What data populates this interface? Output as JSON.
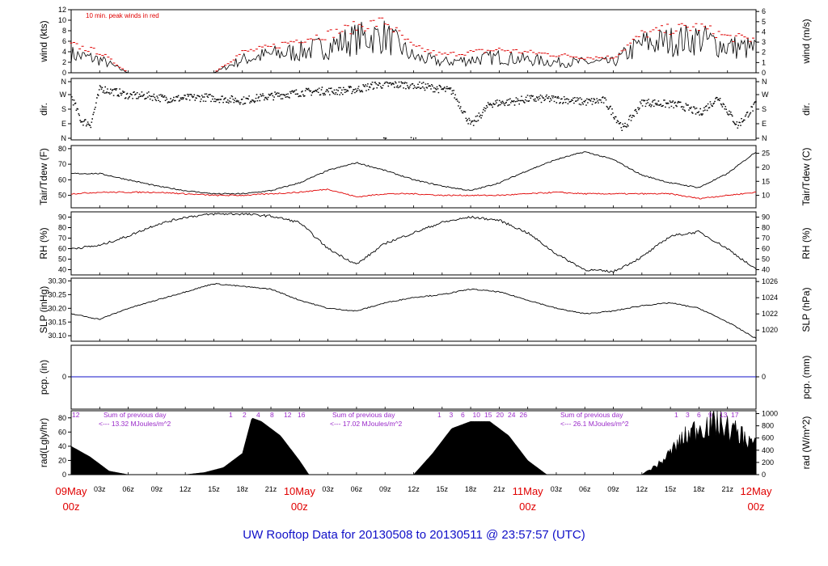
{
  "title": "UW Rooftop Data for 20130508  to  20130511 @ 23:57:57  (UTC)",
  "colors": {
    "red": "#e00000",
    "purple": "#9a2ac9",
    "blue": "#1010c8",
    "black": "#000000"
  },
  "time_axis": {
    "hour_ticks": [
      "03z",
      "06z",
      "09z",
      "12z",
      "15z",
      "18z",
      "21z",
      "03z",
      "06z",
      "09z",
      "12z",
      "15z",
      "18z",
      "21z",
      "03z",
      "06z",
      "09z",
      "12z",
      "15z",
      "18z",
      "21z"
    ],
    "day_labels": [
      {
        "date": "09May",
        "hour": "00z"
      },
      {
        "date": "10May",
        "hour": "00z"
      },
      {
        "date": "11May",
        "hour": "00z"
      },
      {
        "date": "12May",
        "hour": "00z"
      }
    ]
  },
  "chart_data": [
    {
      "type": "line",
      "id": "wind",
      "ylabel": "wind (kts)",
      "ylabel_right": "wind (m/s)",
      "annotation": "10 min. peak winds in red",
      "ylim": [
        0,
        12
      ],
      "yticks": [
        "0",
        "2",
        "4",
        "6",
        "8",
        "10",
        "12"
      ],
      "right_ticks": [
        "0",
        "1",
        "2",
        "3",
        "4",
        "5",
        "6"
      ],
      "x_hours": [
        0,
        3,
        6,
        9,
        12,
        15,
        18,
        21,
        24,
        27,
        30,
        33,
        36,
        39,
        42,
        45,
        48,
        51,
        54,
        57,
        60,
        63,
        66,
        69,
        72
      ],
      "series": [
        {
          "values": [
            3.5,
            2.5,
            0,
            0,
            0,
            0,
            2.5,
            3.5,
            4,
            5,
            6.5,
            7,
            3,
            2,
            2.5,
            3,
            2.5,
            2,
            2,
            2,
            5.5,
            6,
            6.5,
            5,
            4.5
          ]
        },
        {
          "values": [
            5.5,
            4,
            0,
            0,
            0,
            0,
            4,
            5,
            6.5,
            7.5,
            9,
            10,
            5,
            3.5,
            4,
            4.5,
            4,
            3.5,
            3,
            3,
            7.5,
            8.5,
            9,
            7,
            6.5
          ]
        }
      ]
    },
    {
      "type": "scatter",
      "id": "dir",
      "ylabel": "dir.",
      "ylabel_right": "dir.",
      "yticks": [
        "N",
        "E",
        "S",
        "W",
        "N"
      ],
      "right_ticks": [
        "N",
        "E",
        "S",
        "W",
        "N"
      ],
      "ylim": [
        0,
        360
      ],
      "x_hours": [
        0,
        1,
        2,
        3,
        4,
        5,
        6,
        8,
        10,
        12,
        14,
        16,
        18,
        20,
        22,
        24,
        26,
        28,
        30,
        32,
        34,
        36,
        38,
        40,
        42,
        44,
        46,
        48,
        50,
        52,
        54,
        56,
        58,
        60,
        62,
        64,
        66,
        68,
        70,
        72
      ],
      "values": [
        260,
        110,
        90,
        320,
        300,
        290,
        270,
        270,
        250,
        255,
        260,
        250,
        240,
        260,
        275,
        290,
        300,
        300,
        310,
        340,
        340,
        340,
        320,
        300,
        80,
        220,
        230,
        250,
        250,
        245,
        230,
        240,
        60,
        230,
        220,
        210,
        160,
        260,
        80,
        220
      ]
    },
    {
      "type": "line",
      "id": "temp",
      "ylabel": "Tair/Tdew (F)",
      "ylabel_right": "Tair/Tdew (C)",
      "ylim": [
        42,
        82
      ],
      "yticks": [
        "50",
        "60",
        "70",
        "80"
      ],
      "right_ticks": [
        "10",
        "15",
        "20",
        "25"
      ],
      "x_hours": [
        0,
        3,
        6,
        9,
        12,
        15,
        18,
        21,
        24,
        27,
        30,
        33,
        36,
        39,
        42,
        45,
        48,
        51,
        54,
        57,
        60,
        63,
        66,
        69,
        72
      ],
      "series": [
        {
          "name": "Tair",
          "values": [
            64,
            64,
            60,
            56,
            53,
            51,
            51,
            53,
            58,
            66,
            71,
            66,
            60,
            56,
            53,
            58,
            66,
            73,
            78,
            73,
            63,
            58,
            55,
            64,
            78
          ]
        },
        {
          "name": "Tdew",
          "values": [
            51,
            52,
            52,
            52,
            51,
            50,
            50,
            51,
            52,
            54,
            49,
            51,
            51,
            50,
            50,
            50,
            51,
            52,
            51,
            51,
            51,
            51,
            48,
            50,
            52
          ]
        }
      ]
    },
    {
      "type": "line",
      "id": "rh",
      "ylabel": "RH (%)",
      "ylabel_right": "RH (%)",
      "ylim": [
        35,
        95
      ],
      "yticks": [
        "40",
        "50",
        "60",
        "70",
        "80",
        "90"
      ],
      "right_ticks": [
        "40",
        "50",
        "60",
        "70",
        "80",
        "90"
      ],
      "x_hours": [
        0,
        3,
        6,
        9,
        12,
        15,
        18,
        21,
        24,
        27,
        30,
        33,
        36,
        39,
        42,
        45,
        48,
        51,
        54,
        57,
        60,
        63,
        66,
        69,
        72
      ],
      "values": [
        60,
        63,
        72,
        83,
        90,
        93,
        93,
        91,
        85,
        60,
        45,
        65,
        75,
        85,
        90,
        87,
        75,
        55,
        40,
        38,
        52,
        72,
        76,
        60,
        40
      ]
    },
    {
      "type": "line",
      "id": "slp",
      "ylabel": "SLP (inHg)",
      "ylabel_right": "SLP (hPa)",
      "ylim": [
        30.08,
        30.31
      ],
      "yticks": [
        "30.10",
        "30.15",
        "30.20",
        "30.25",
        "30.30"
      ],
      "right_ticks": [
        "1020",
        "1022",
        "1024",
        "1026"
      ],
      "x_hours": [
        0,
        3,
        6,
        9,
        12,
        15,
        18,
        21,
        24,
        27,
        30,
        33,
        36,
        39,
        42,
        45,
        48,
        51,
        54,
        57,
        60,
        63,
        66,
        69,
        72
      ],
      "values": [
        30.18,
        30.16,
        30.2,
        30.23,
        30.26,
        30.29,
        30.28,
        30.27,
        30.23,
        30.2,
        30.19,
        30.22,
        30.24,
        30.25,
        30.27,
        30.26,
        30.23,
        30.2,
        30.18,
        30.19,
        30.21,
        30.22,
        30.2,
        30.15,
        30.09
      ]
    },
    {
      "type": "line",
      "id": "pcp",
      "ylabel": "pcp. (in)",
      "ylabel_right": "pcp. (mm)",
      "yticks": [
        "0"
      ],
      "right_ticks": [
        "0"
      ],
      "values": [
        0
      ]
    },
    {
      "type": "area",
      "id": "rad",
      "ylabel": "rad(Lgly/hr)",
      "ylabel_right": "rad (W/m^2)",
      "ylim": [
        0,
        90
      ],
      "yticks": [
        "0",
        "20",
        "40",
        "60",
        "80"
      ],
      "right_ticks": [
        "0",
        "200",
        "400",
        "600",
        "800",
        "1000"
      ],
      "annotations": [
        {
          "label": "Sum of previous day",
          "value": "<--- 13.32 MJoules/m^2"
        },
        {
          "label": "Sum of previous day",
          "value": "<--- 17.02 MJoules/m^2"
        },
        {
          "label": "Sum of previous day",
          "value": "<--- 26.1 MJoules/m^2"
        }
      ],
      "hour_markers": [
        [
          "12"
        ],
        [
          "1",
          "2",
          "4",
          "8",
          "12",
          "16"
        ],
        [
          "1",
          "3",
          "6",
          "10",
          "15",
          "20",
          "24",
          "26"
        ],
        [
          "1",
          "3",
          "6",
          "9",
          "13",
          "17"
        ]
      ],
      "x_hours": [
        0,
        2,
        4,
        6,
        12,
        14,
        16,
        18,
        19,
        20,
        22,
        24,
        25,
        26,
        36,
        38,
        40,
        42,
        44,
        46,
        48,
        50,
        60,
        62,
        64,
        66,
        68,
        70,
        72
      ],
      "values": [
        40,
        25,
        5,
        0,
        0,
        3,
        10,
        30,
        80,
        75,
        55,
        20,
        0,
        0,
        0,
        30,
        65,
        75,
        75,
        55,
        20,
        0,
        0,
        20,
        55,
        80,
        85,
        70,
        50
      ]
    }
  ]
}
